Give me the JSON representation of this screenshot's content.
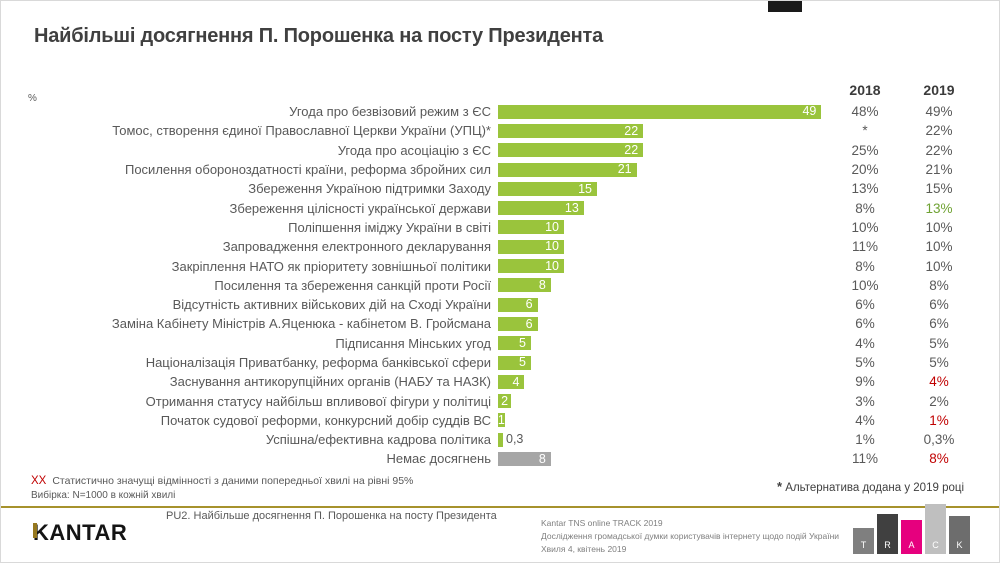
{
  "title": "Найбільші досягнення П. Порошенка на посту Президента",
  "percent_label": "%",
  "columns": {
    "y2018": "2018",
    "y2019": "2019"
  },
  "chart_data": {
    "type": "bar",
    "orientation": "horizontal",
    "title": "Найбільші досягнення П. Порошенка на посту Президента",
    "xlim": [
      0,
      50
    ],
    "bar_color": "#9ac43c",
    "gray_bar_color": "#a6a6a6",
    "legend_position": "right-columns",
    "rows": [
      {
        "label": "Угода про безвізовий режим з ЄС",
        "value": 49,
        "value_label": "49",
        "y2018": "48%",
        "y2019": "49%",
        "sig": "",
        "gray": false
      },
      {
        "label": "Томос, створення єдиної Православної Церкви України (УПЦ)*",
        "value": 22,
        "value_label": "22",
        "y2018": "*",
        "y2019": "22%",
        "sig": "",
        "gray": false
      },
      {
        "label": "Угода про асоціацію з ЄС",
        "value": 22,
        "value_label": "22",
        "y2018": "25%",
        "y2019": "22%",
        "sig": "",
        "gray": false
      },
      {
        "label": "Посилення обороноздатності країни, реформа збройних сил",
        "value": 21,
        "value_label": "21",
        "y2018": "20%",
        "y2019": "21%",
        "sig": "",
        "gray": false
      },
      {
        "label": "Збереження Україною підтримки  Заходу",
        "value": 15,
        "value_label": "15",
        "y2018": "13%",
        "y2019": "15%",
        "sig": "",
        "gray": false
      },
      {
        "label": "Збереження цілісності української держави",
        "value": 13,
        "value_label": "13",
        "y2018": "8%",
        "y2019": "13%",
        "sig": "up",
        "gray": false
      },
      {
        "label": "Поліпшення  іміджу України в світі",
        "value": 10,
        "value_label": "10",
        "y2018": "10%",
        "y2019": "10%",
        "sig": "",
        "gray": false
      },
      {
        "label": "Запровадження електронного декларування",
        "value": 10,
        "value_label": "10",
        "y2018": "11%",
        "y2019": "10%",
        "sig": "",
        "gray": false
      },
      {
        "label": "Закріплення  НАТО як пріоритету зовнішньої політики",
        "value": 10,
        "value_label": "10",
        "y2018": "8%",
        "y2019": "10%",
        "sig": "",
        "gray": false
      },
      {
        "label": "Посилення та збереження санкцій проти Росії",
        "value": 8,
        "value_label": "8",
        "y2018": "10%",
        "y2019": "8%",
        "sig": "",
        "gray": false
      },
      {
        "label": "Відсутність активних  військових дій на Сході України",
        "value": 6,
        "value_label": "6",
        "y2018": "6%",
        "y2019": "6%",
        "sig": "",
        "gray": false
      },
      {
        "label": "Заміна Кабінету Міністрів А.Яценюка - кабінетом В. Гройсмана",
        "value": 6,
        "value_label": "6",
        "y2018": "6%",
        "y2019": "6%",
        "sig": "",
        "gray": false
      },
      {
        "label": "Підписання  Мінських угод",
        "value": 5,
        "value_label": "5",
        "y2018": "4%",
        "y2019": "5%",
        "sig": "",
        "gray": false
      },
      {
        "label": "Націоналізація  Приватбанку, реформа банківської сфери",
        "value": 5,
        "value_label": "5",
        "y2018": "5%",
        "y2019": "5%",
        "sig": "",
        "gray": false
      },
      {
        "label": "Заснування  антикорупційних  органів (НАБУ та НАЗК)",
        "value": 4,
        "value_label": "4",
        "y2018": "9%",
        "y2019": "4%",
        "sig": "down",
        "gray": false
      },
      {
        "label": "Отримання статусу найбільш  впливової фігури у політиці",
        "value": 2,
        "value_label": "2",
        "y2018": "3%",
        "y2019": "2%",
        "sig": "",
        "gray": false
      },
      {
        "label": "Початок судової реформи, конкурсний добір суддів ВС",
        "value": 1,
        "value_label": "1",
        "y2018": "4%",
        "y2019": "1%",
        "sig": "down",
        "gray": false
      },
      {
        "label": "Успішна/ефективна  кадрова політика",
        "value": 0.3,
        "value_label": "0,3",
        "y2018": "1%",
        "y2019": "0,3%",
        "sig": "",
        "gray": false
      },
      {
        "label": "Немає досягнень",
        "value": 8,
        "value_label": "8",
        "y2018": "11%",
        "y2019": "8%",
        "sig": "down",
        "gray": true
      }
    ]
  },
  "notes": {
    "sig_marker": "ХХ",
    "sig_text": "Статистично  значущі відмінності з даними попередньої  хвилі на рівні 95%",
    "sample_text": "Вибірка: N=1000 в кожній хвилі",
    "alt_star": "*",
    "alt_text": "Альтернатива  додана  у 2019 році"
  },
  "footer": {
    "question_label": "PU2. Найбільше досягнення П. Порошенка на посту Президента",
    "brand": "KANTAR",
    "source_line1": "Kantar TNS online TRACK 2019",
    "source_line2": "Дослідження громадської думки користувачів інтернету щодо подій України",
    "source_line3": "Хвиля 4, квітень 2019",
    "track_logo": {
      "letters": [
        "T",
        "R",
        "A",
        "C",
        "K"
      ],
      "colors": [
        "#7f7f7f",
        "#404040",
        "#e6007e",
        "#bfbfbf",
        "#6d6d6d"
      ],
      "heights": [
        26,
        40,
        34,
        50,
        38
      ]
    }
  },
  "colors": {
    "bar_green": "#9ac43c",
    "gray_bar": "#a6a6a6",
    "sig_up_green": "#6fa233",
    "sig_down_red": "#c00000",
    "divider_olive": "#a6922c",
    "text_gray": "#595959"
  }
}
